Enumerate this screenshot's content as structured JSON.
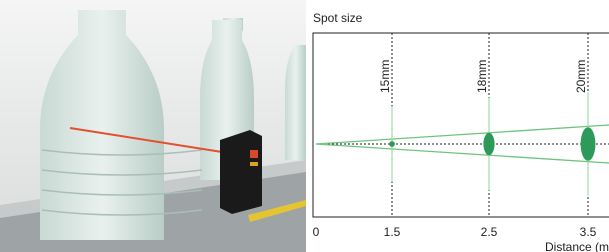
{
  "title": "Spot size",
  "x_axis": {
    "label": "Distance (m",
    "ticks": [
      0,
      1.5,
      2.5,
      3.5
    ]
  },
  "spots": [
    {
      "distance": 1.5,
      "size": 15,
      "size_label": "15mm"
    },
    {
      "distance": 2.5,
      "size": 18,
      "size_label": "18mm"
    },
    {
      "distance": 3.5,
      "size": 20,
      "size_label": "20mm"
    }
  ]
}
